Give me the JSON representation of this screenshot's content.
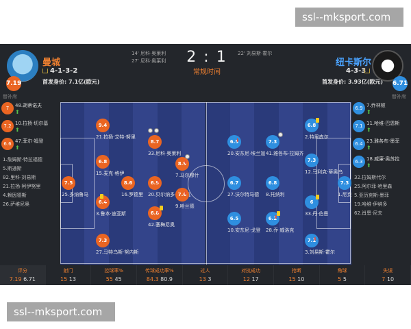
{
  "watermark": "ssl--mksport.com",
  "labels": {
    "subs": "替补席"
  },
  "match": {
    "score": "2 : 1",
    "status": "常规时间",
    "home": {
      "name": "曼城",
      "rating": "7.19",
      "formation": "4-1-3-2",
      "value": "首发身价: 7.1亿(欧元)",
      "goals": [
        "14' 尼科·奥莱利",
        "27' 尼科·奥莱利"
      ],
      "color": "#ea6522"
    },
    "away": {
      "name": "纽卡斯尔",
      "rating": "6.71",
      "formation": "4-3-3",
      "value": "首发身价: 3.93亿(欧元)",
      "goals": [
        "22' 刘易斯·霍尔"
      ],
      "color": "#2f8fe0"
    }
  },
  "home_subs": [
    {
      "rating": "7",
      "text": "48.胡蒂诺夫",
      "arrow": true
    },
    {
      "rating": "7.2",
      "text": "10.拉扬·切尔基",
      "arrow": true
    },
    {
      "rating": "6.6",
      "text": "47.菲尔·福登",
      "arrow": true
    },
    {
      "rating": "",
      "text": "1.詹姆斯·特拉福德"
    },
    {
      "rating": "",
      "text": "5.斯通斯"
    },
    {
      "rating": "",
      "text": "82.里科·刘易斯"
    },
    {
      "rating": "",
      "text": "21.拉扬·阿伊努里"
    },
    {
      "rating": "",
      "text": "4.赖因德斯"
    },
    {
      "rating": "",
      "text": "26.萨维尼奥"
    }
  ],
  "away_subs": [
    {
      "rating": "6.9",
      "text": "7.乔林顿",
      "arrow": true
    },
    {
      "rating": "7.1",
      "text": "11.哈维·巴恩斯",
      "arrow": true
    },
    {
      "rating": "6.4",
      "text": "23.雅各布·墨菲",
      "arrow": true
    },
    {
      "rating": "6.3",
      "text": "18.威廉·奥苏拉",
      "arrow": true
    },
    {
      "rating": "",
      "text": "32.拉姆斯代尔"
    },
    {
      "rating": "",
      "text": "25.阿尔菲·哈里森"
    },
    {
      "rating": "",
      "text": "5.亚历克斯·墨菲"
    },
    {
      "rating": "",
      "text": "19.哈维·伊纳多"
    },
    {
      "rating": "",
      "text": "62.肖恩·尼夫"
    }
  ],
  "players": [
    {
      "team": "home",
      "rating": "7.5",
      "name": "25.多纳鲁马"
    },
    {
      "team": "home",
      "rating": "9.4",
      "name": "21.拉扬·艾特-努里"
    },
    {
      "team": "home",
      "rating": "6.8",
      "name": "15.麦克·格伊"
    },
    {
      "team": "home",
      "rating": "6.4",
      "name": "3.鲁本·迪亚斯"
    },
    {
      "team": "home",
      "rating": "7.3",
      "name": "27.马特乌斯·努内斯"
    },
    {
      "team": "home",
      "rating": "8.6",
      "name": "16.罗德里"
    },
    {
      "team": "home",
      "rating": "8.7",
      "name": "33.尼科·奥莱利"
    },
    {
      "team": "home",
      "rating": "6.9",
      "name": "20.贝尔纳多·席尔瓦"
    },
    {
      "team": "home",
      "rating": "6.8",
      "name": "42.塞梅尼奥"
    },
    {
      "team": "home",
      "rating": "8.9",
      "name": "7.马尔穆什"
    },
    {
      "team": "home",
      "rating": "7.6",
      "name": "9.哈兰德"
    },
    {
      "team": "away",
      "rating": "7.3",
      "name": "1.尼克·波普"
    },
    {
      "team": "away",
      "rating": "6.8",
      "name": "2.特里皮尔"
    },
    {
      "team": "away",
      "rating": "7.3",
      "name": "12.马利克·蒂奥乌"
    },
    {
      "team": "away",
      "rating": "6",
      "name": "33.丹·伯恩"
    },
    {
      "team": "away",
      "rating": "7.1",
      "name": "3.刘易斯·霍尔"
    },
    {
      "team": "away",
      "rating": "7.3",
      "name": "41.雅各布·拉姆齐"
    },
    {
      "team": "away",
      "rating": "6.8",
      "name": "8.托纳利"
    },
    {
      "team": "away",
      "rating": "6.2",
      "name": "28.乔·威洛克"
    },
    {
      "team": "away",
      "rating": "6.5",
      "name": "20.安东尼·埃兰加"
    },
    {
      "team": "away",
      "rating": "6.7",
      "name": "27.沃尔特马德"
    },
    {
      "team": "away",
      "rating": "6.5",
      "name": "10.安东尼·戈登"
    }
  ],
  "stats": [
    {
      "title": "评分",
      "home": "7.19",
      "away": "6.71"
    },
    {
      "title": "射门",
      "home": "15",
      "away": "13"
    },
    {
      "title": "控球率%",
      "home": "55",
      "away": "45"
    },
    {
      "title": "传球成功率%",
      "home": "84.3",
      "away": "80.9"
    },
    {
      "title": "过人",
      "home": "13",
      "away": "3"
    },
    {
      "title": "对抗成功",
      "home": "12",
      "away": "17"
    },
    {
      "title": "抢断",
      "home": "15",
      "away": "10"
    },
    {
      "title": "角球",
      "home": "5",
      "away": "5"
    },
    {
      "title": "失误",
      "home": "7",
      "away": "10"
    }
  ]
}
